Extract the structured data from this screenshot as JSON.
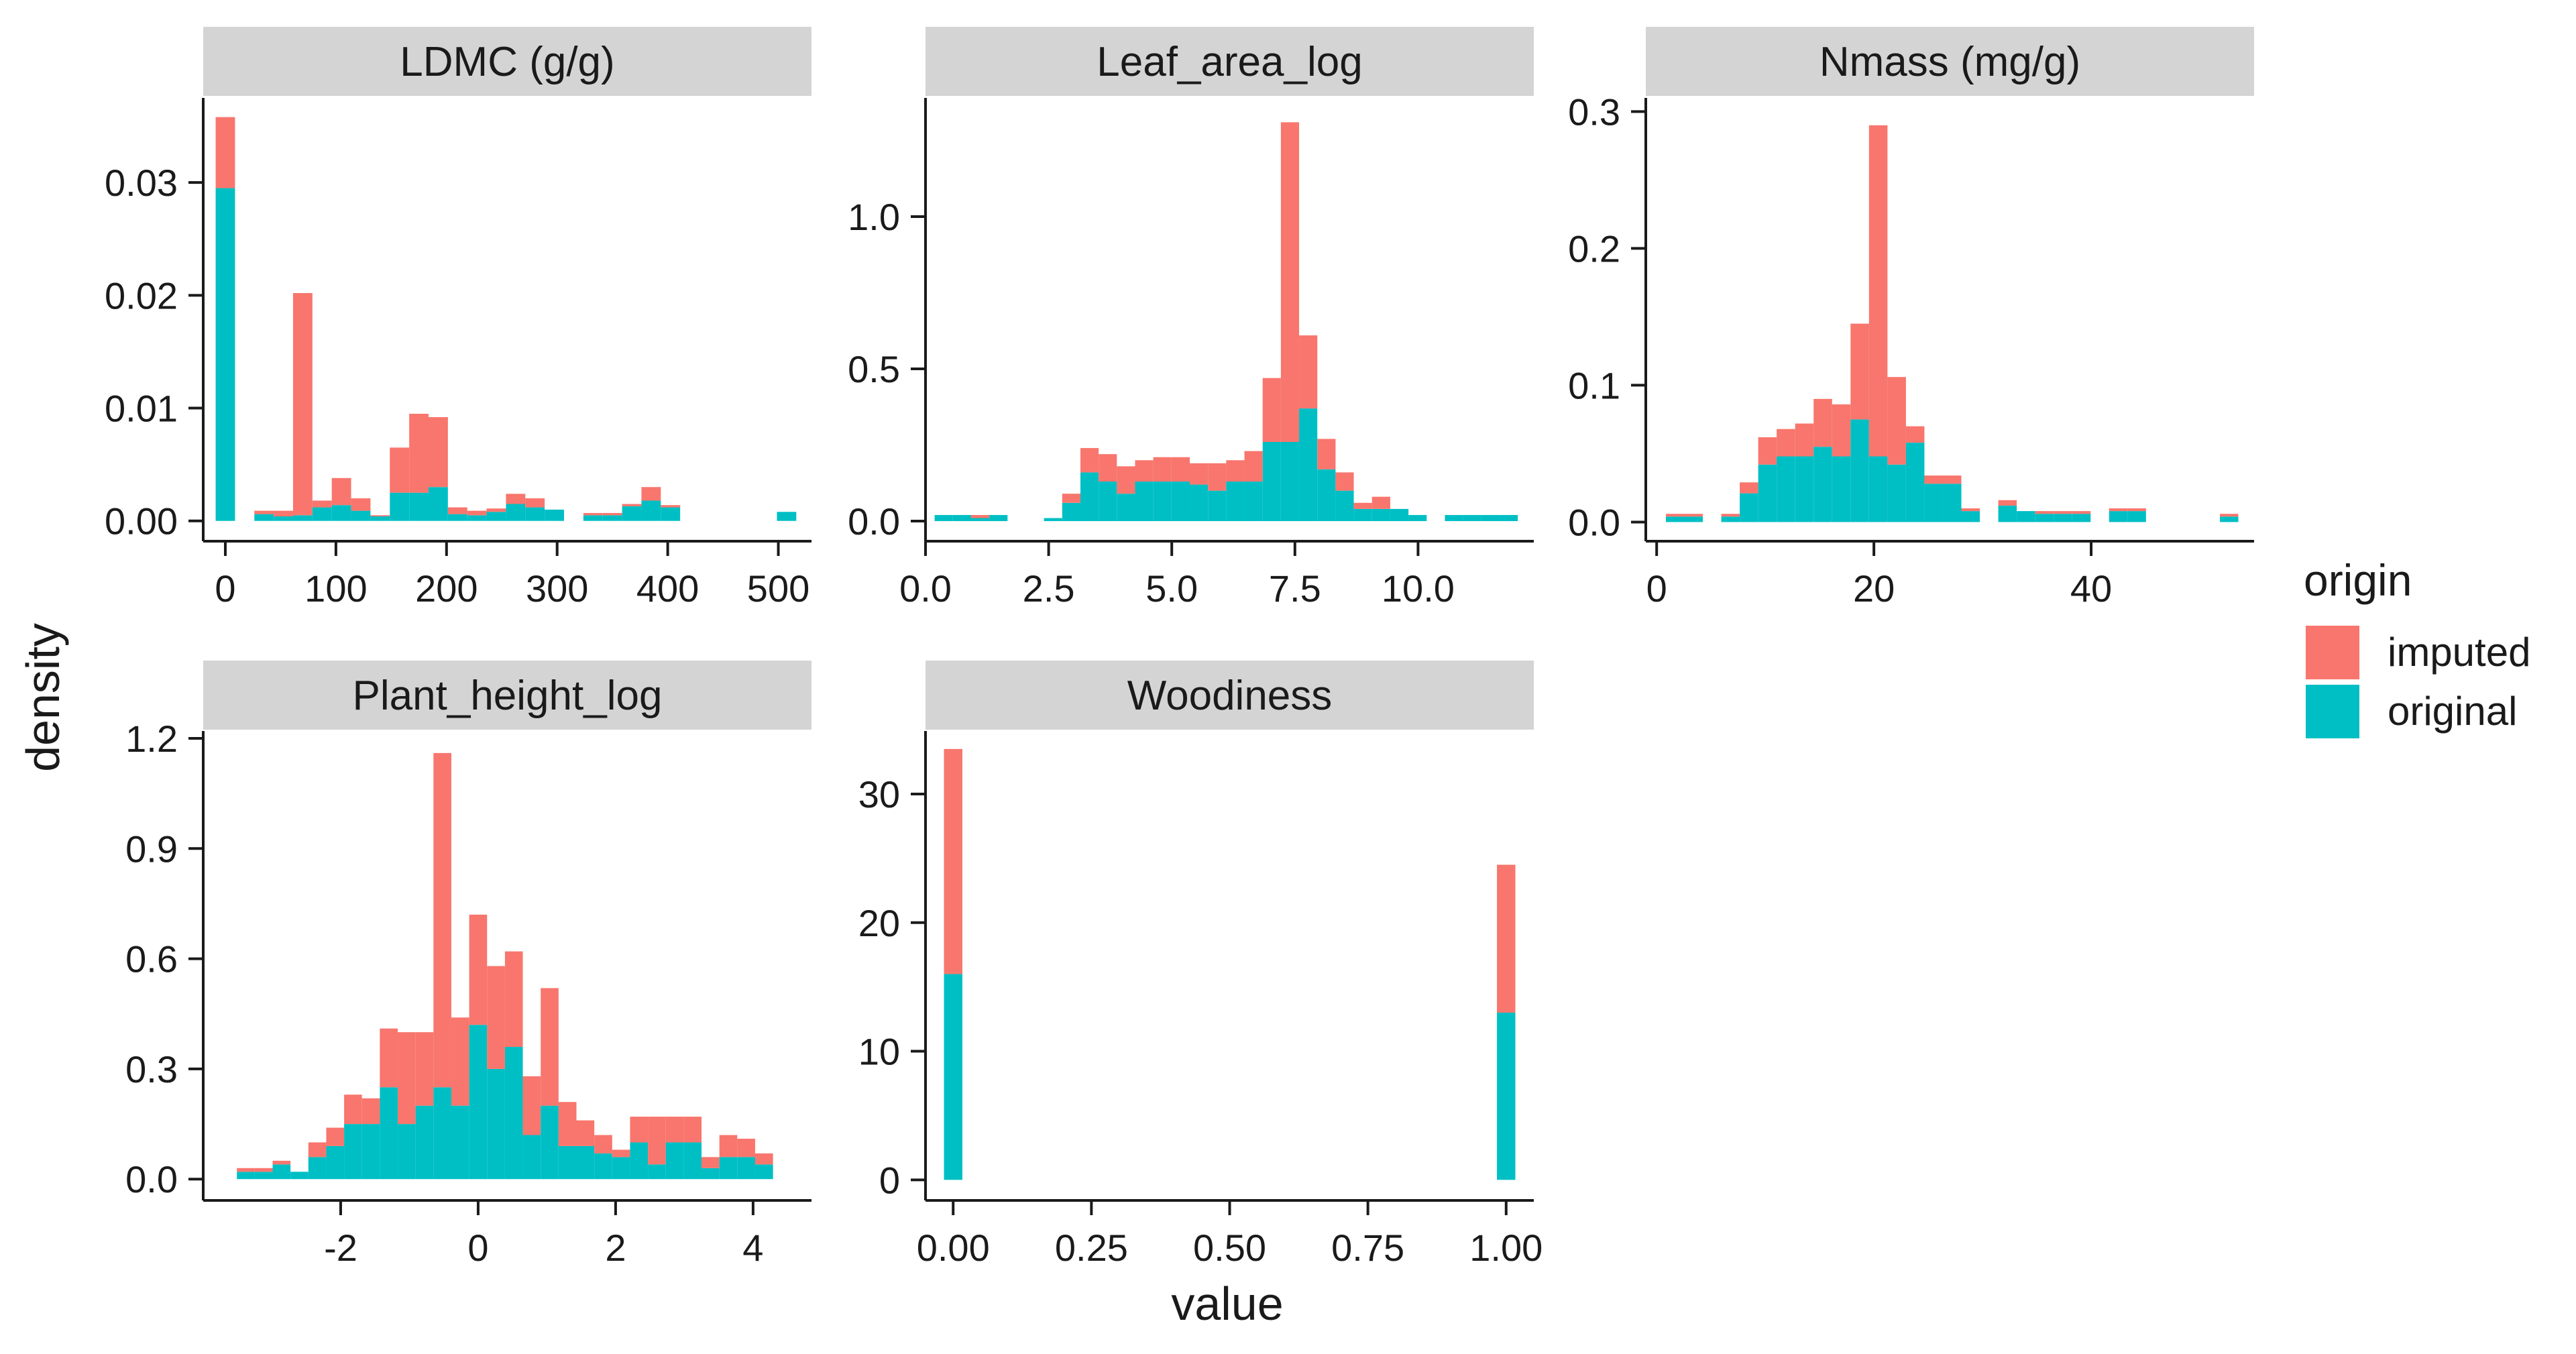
{
  "colors": {
    "imputed": "#F8766D",
    "original": "#00BFC4",
    "strip": "#D4D4D4",
    "axis": "#1a1a1a"
  },
  "axes": {
    "xlabel": "value",
    "ylabel": "density"
  },
  "legend": {
    "title": "origin",
    "placement": "right",
    "items": [
      {
        "label": "imputed",
        "color": "#F8766D"
      },
      {
        "label": "original",
        "color": "#00BFC4"
      }
    ]
  },
  "chart_data": [
    {
      "type": "bar",
      "stacked": true,
      "title": "LDMC (g/g)",
      "xlim": [
        -20,
        530
      ],
      "ylim": [
        -0.0018,
        0.0375
      ],
      "xticks": [
        0,
        100,
        200,
        300,
        400,
        500
      ],
      "yticks": [
        0,
        0.01,
        0.02,
        0.03
      ],
      "ytick_labels": [
        "0.00",
        "0.01",
        "0.02",
        "0.03"
      ],
      "binwidth": 17.5,
      "series": [
        {
          "name": "original",
          "x": [
            0,
            35,
            52.5,
            70,
            87.5,
            105,
            122.5,
            140,
            157.5,
            175,
            192.5,
            210,
            227.5,
            245,
            262.5,
            280,
            297.5,
            332.5,
            350,
            367.5,
            385,
            402.5,
            507.5
          ],
          "values": [
            0.0295,
            0.0006,
            0.0004,
            0.0005,
            0.0012,
            0.0014,
            0.0009,
            0.0004,
            0.0025,
            0.0025,
            0.003,
            0.0006,
            0.0005,
            0.0008,
            0.0015,
            0.0012,
            0.001,
            0.0005,
            0.0005,
            0.0013,
            0.0018,
            0.0012,
            0.0008
          ]
        },
        {
          "name": "imputed",
          "x": [
            0,
            35,
            52.5,
            70,
            87.5,
            105,
            122.5,
            140,
            157.5,
            175,
            192.5,
            210,
            227.5,
            245,
            262.5,
            280,
            297.5,
            332.5,
            350,
            367.5,
            385,
            402.5,
            507.5
          ],
          "values": [
            0.0063,
            0.0003,
            0.0005,
            0.0197,
            0.0006,
            0.0024,
            0.0011,
            0.0001,
            0.004,
            0.007,
            0.0062,
            0.0006,
            0.0004,
            0.0003,
            0.0009,
            0.0008,
            0,
            0.0002,
            0.0002,
            0.0002,
            0.0012,
            0.0002,
            0
          ]
        }
      ]
    },
    {
      "type": "bar",
      "stacked": true,
      "title": "Leaf_area_log",
      "xlim": [
        0,
        12.35
      ],
      "ylim": [
        -0.066,
        1.39
      ],
      "xticks": [
        0,
        2.5,
        5,
        7.5,
        10
      ],
      "xtick_labels": [
        "0.0",
        "2.5",
        "5.0",
        "7.5",
        "10.0"
      ],
      "yticks": [
        0,
        0.5,
        1.0
      ],
      "ytick_labels": [
        "0.0",
        "0.5",
        "1.0"
      ],
      "binwidth": 0.37,
      "series": [
        {
          "name": "original",
          "x": [
            0.37,
            0.74,
            1.11,
            1.48,
            2.59,
            2.96,
            3.33,
            3.7,
            4.07,
            4.44,
            4.81,
            5.18,
            5.55,
            5.92,
            6.29,
            6.66,
            7.03,
            7.4,
            7.77,
            8.14,
            8.51,
            8.88,
            9.25,
            9.62,
            9.99,
            10.73,
            11.1,
            11.47,
            11.84
          ],
          "values": [
            0.02,
            0.02,
            0.01,
            0.02,
            0.01,
            0.06,
            0.16,
            0.13,
            0.09,
            0.13,
            0.13,
            0.13,
            0.12,
            0.1,
            0.13,
            0.13,
            0.26,
            0.26,
            0.37,
            0.17,
            0.1,
            0.04,
            0.04,
            0.04,
            0.02,
            0.02,
            0.02,
            0.02,
            0.02
          ]
        },
        {
          "name": "imputed",
          "x": [
            0.37,
            0.74,
            1.11,
            1.48,
            2.59,
            2.96,
            3.33,
            3.7,
            4.07,
            4.44,
            4.81,
            5.18,
            5.55,
            5.92,
            6.29,
            6.66,
            7.03,
            7.4,
            7.77,
            8.14,
            8.51,
            8.88,
            9.25,
            9.62,
            9.99,
            10.73,
            11.1,
            11.47,
            11.84
          ],
          "values": [
            0,
            0,
            0.01,
            0,
            0,
            0.03,
            0.08,
            0.09,
            0.09,
            0.07,
            0.08,
            0.08,
            0.07,
            0.09,
            0.07,
            0.1,
            0.21,
            1.05,
            0.24,
            0.1,
            0.06,
            0.02,
            0.04,
            0,
            0,
            0,
            0,
            0,
            0
          ]
        }
      ]
    },
    {
      "type": "bar",
      "stacked": true,
      "title": "Nmass (mg/g)",
      "xlim": [
        -1,
        55
      ],
      "ylim": [
        -0.014,
        0.31
      ],
      "xticks": [
        0,
        20,
        40
      ],
      "yticks": [
        0,
        0.1,
        0.2,
        0.3
      ],
      "ytick_labels": [
        "0.0",
        "0.1",
        "0.2",
        "0.3"
      ],
      "binwidth": 1.7,
      "series": [
        {
          "name": "original",
          "x": [
            1.7,
            3.4,
            6.8,
            8.5,
            10.2,
            11.9,
            13.6,
            15.3,
            17,
            18.7,
            20.4,
            22.1,
            23.8,
            25.5,
            27.2,
            28.9,
            32.3,
            34,
            35.7,
            37.4,
            39.1,
            42.5,
            44.2,
            52.7
          ],
          "values": [
            0.004,
            0.004,
            0.004,
            0.021,
            0.042,
            0.048,
            0.048,
            0.055,
            0.048,
            0.075,
            0.048,
            0.042,
            0.058,
            0.028,
            0.028,
            0.008,
            0.012,
            0.008,
            0.006,
            0.006,
            0.006,
            0.008,
            0.008,
            0.004
          ]
        },
        {
          "name": "imputed",
          "x": [
            1.7,
            3.4,
            6.8,
            8.5,
            10.2,
            11.9,
            13.6,
            15.3,
            17,
            18.7,
            20.4,
            22.1,
            23.8,
            25.5,
            27.2,
            28.9,
            32.3,
            34,
            35.7,
            37.4,
            39.1,
            42.5,
            44.2,
            52.7
          ],
          "values": [
            0.002,
            0.002,
            0.002,
            0.008,
            0.02,
            0.02,
            0.024,
            0.035,
            0.038,
            0.07,
            0.242,
            0.064,
            0.012,
            0.006,
            0.006,
            0.002,
            0.004,
            0,
            0.002,
            0.002,
            0.002,
            0.002,
            0.002,
            0.002
          ]
        }
      ]
    },
    {
      "type": "bar",
      "stacked": true,
      "title": "Plant_height_log",
      "xlim": [
        -4,
        4.85
      ],
      "ylim": [
        -0.058,
        1.22
      ],
      "xticks": [
        -2,
        0,
        2,
        4
      ],
      "yticks": [
        0,
        0.3,
        0.6,
        0.9,
        1.2
      ],
      "ytick_labels": [
        "0.0",
        "0.3",
        "0.6",
        "0.9",
        "1.2"
      ],
      "binwidth": 0.26,
      "series": [
        {
          "name": "original",
          "x": [
            -3.38,
            -3.12,
            -2.86,
            -2.6,
            -2.34,
            -2.08,
            -1.82,
            -1.56,
            -1.3,
            -1.04,
            -0.78,
            -0.52,
            -0.26,
            0,
            0.26,
            0.52,
            0.78,
            1.04,
            1.3,
            1.56,
            1.82,
            2.08,
            2.34,
            2.6,
            2.86,
            3.12,
            3.38,
            3.64,
            3.9,
            4.16
          ],
          "values": [
            0.02,
            0.02,
            0.04,
            0.02,
            0.06,
            0.09,
            0.15,
            0.15,
            0.25,
            0.15,
            0.2,
            0.25,
            0.2,
            0.42,
            0.3,
            0.36,
            0.12,
            0.2,
            0.09,
            0.09,
            0.07,
            0.06,
            0.1,
            0.04,
            0.1,
            0.1,
            0.03,
            0.06,
            0.06,
            0.04
          ]
        },
        {
          "name": "imputed",
          "x": [
            -3.38,
            -3.12,
            -2.86,
            -2.6,
            -2.34,
            -2.08,
            -1.82,
            -1.56,
            -1.3,
            -1.04,
            -0.78,
            -0.52,
            -0.26,
            0,
            0.26,
            0.52,
            0.78,
            1.04,
            1.3,
            1.56,
            1.82,
            2.08,
            2.34,
            2.6,
            2.86,
            3.12,
            3.38,
            3.64,
            3.9,
            4.16
          ],
          "values": [
            0.01,
            0.01,
            0.01,
            0,
            0.04,
            0.05,
            0.08,
            0.07,
            0.16,
            0.25,
            0.2,
            0.91,
            0.24,
            0.3,
            0.28,
            0.26,
            0.16,
            0.32,
            0.12,
            0.07,
            0.05,
            0.02,
            0.07,
            0.13,
            0.07,
            0.07,
            0.03,
            0.06,
            0.05,
            0.03
          ]
        }
      ]
    },
    {
      "type": "bar",
      "stacked": true,
      "title": "Woodiness",
      "xlim": [
        -0.05,
        1.05
      ],
      "ylim": [
        -1.6,
        34.9
      ],
      "xticks": [
        0,
        0.25,
        0.5,
        0.75,
        1
      ],
      "xtick_labels": [
        "0.00",
        "0.25",
        "0.50",
        "0.75",
        "1.00"
      ],
      "yticks": [
        0,
        10,
        20,
        30
      ],
      "binwidth": 0.0333,
      "series": [
        {
          "name": "original",
          "x": [
            0,
            1
          ],
          "values": [
            16,
            13
          ]
        },
        {
          "name": "imputed",
          "x": [
            0,
            1
          ],
          "values": [
            17.5,
            11.5
          ]
        }
      ]
    }
  ]
}
